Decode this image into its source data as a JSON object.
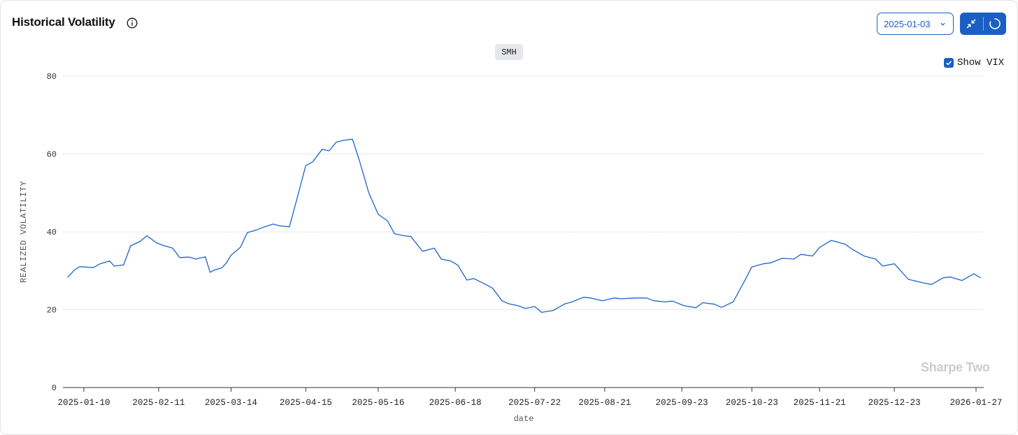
{
  "header": {
    "title": "Historical Volatility",
    "date_select": {
      "value": "2025-01-03"
    },
    "show_vix": {
      "label": "Show VIX",
      "checked": true
    }
  },
  "ticker_badge": "SMH",
  "watermark": "Sharpe Two",
  "icons": {
    "info": "info-icon",
    "date_dropdown": "chevron-down-icon",
    "collapse": "collapse-icon",
    "refresh": "loading-spinner-icon",
    "checkbox": "checkmark-icon"
  },
  "colors": {
    "accent": "#1a5fc4",
    "line": "#1f63c9",
    "grid": "#cfd1d5",
    "watermark": "#c9ccd1"
  },
  "chart_data": {
    "type": "line",
    "title": "",
    "xlabel": "date",
    "ylabel": "REALIZED VOLATILITY",
    "ylim": [
      0,
      80
    ],
    "yticks": [
      0,
      20,
      40,
      60,
      80
    ],
    "xticks": [
      "2025-01-10",
      "2025-02-11",
      "2025-03-14",
      "2025-04-15",
      "2025-05-16",
      "2025-06-18",
      "2025-07-22",
      "2025-08-21",
      "2025-09-23",
      "2025-10-23",
      "2025-11-21",
      "2025-12-23",
      "2026-01-27"
    ],
    "grid": true,
    "series": [
      {
        "x": [
          "2025-01-03",
          "2025-01-06",
          "2025-01-08",
          "2025-01-10",
          "2025-01-14",
          "2025-01-17",
          "2025-01-21",
          "2025-01-23",
          "2025-01-27",
          "2025-01-30",
          "2025-02-03",
          "2025-02-06",
          "2025-02-10",
          "2025-02-13",
          "2025-02-17",
          "2025-02-20",
          "2025-02-24",
          "2025-02-27",
          "2025-03-03",
          "2025-03-05",
          "2025-03-07",
          "2025-03-10",
          "2025-03-12",
          "2025-03-14",
          "2025-03-18",
          "2025-03-21",
          "2025-03-25",
          "2025-03-28",
          "2025-04-01",
          "2025-04-04",
          "2025-04-08",
          "2025-04-11",
          "2025-04-15",
          "2025-04-18",
          "2025-04-22",
          "2025-04-25",
          "2025-04-28",
          "2025-05-01",
          "2025-05-05",
          "2025-05-08",
          "2025-05-12",
          "2025-05-16",
          "2025-05-20",
          "2025-05-23",
          "2025-05-27",
          "2025-05-30",
          "2025-06-04",
          "2025-06-09",
          "2025-06-12",
          "2025-06-16",
          "2025-06-19",
          "2025-06-23",
          "2025-06-26",
          "2025-07-01",
          "2025-07-04",
          "2025-07-08",
          "2025-07-11",
          "2025-07-15",
          "2025-07-18",
          "2025-07-22",
          "2025-07-25",
          "2025-07-30",
          "2025-08-04",
          "2025-08-07",
          "2025-08-12",
          "2025-08-15",
          "2025-08-20",
          "2025-08-25",
          "2025-08-28",
          "2025-09-03",
          "2025-09-08",
          "2025-09-11",
          "2025-09-16",
          "2025-09-19",
          "2025-09-24",
          "2025-09-29",
          "2025-10-02",
          "2025-10-07",
          "2025-10-10",
          "2025-10-15",
          "2025-10-20",
          "2025-10-23",
          "2025-10-28",
          "2025-10-31",
          "2025-11-05",
          "2025-11-10",
          "2025-11-13",
          "2025-11-18",
          "2025-11-21",
          "2025-11-26",
          "2025-12-02",
          "2025-12-05",
          "2025-12-10",
          "2025-12-15",
          "2025-12-18",
          "2025-12-23",
          "2025-12-29",
          "2026-01-05",
          "2026-01-08",
          "2026-01-13",
          "2026-01-16",
          "2026-01-21",
          "2026-01-26",
          "2026-01-29"
        ],
        "y": [
          28.3,
          30.2,
          31.0,
          31.0,
          30.8,
          31.8,
          32.5,
          31.2,
          31.5,
          36.4,
          37.5,
          39.0,
          37.2,
          36.5,
          35.8,
          33.4,
          33.5,
          33.0,
          33.6,
          29.6,
          30.2,
          30.7,
          32.0,
          34.0,
          36.0,
          39.8,
          40.5,
          41.2,
          42.0,
          41.5,
          41.3,
          48.0,
          57.0,
          58.0,
          61.2,
          60.8,
          63.0,
          63.5,
          63.8,
          58.2,
          50.0,
          44.5,
          42.8,
          39.5,
          39.0,
          38.8,
          35.0,
          35.8,
          33.0,
          32.5,
          31.5,
          27.6,
          28.0,
          26.5,
          25.5,
          22.3,
          21.5,
          21.0,
          20.3,
          20.8,
          19.3,
          19.8,
          21.5,
          22.0,
          23.2,
          23.0,
          22.3,
          23.0,
          22.8,
          23.0,
          23.0,
          22.3,
          22.0,
          22.2,
          21.0,
          20.5,
          21.8,
          21.4,
          20.6,
          22.0,
          27.5,
          31.0,
          31.8,
          32.0,
          33.2,
          33.0,
          34.2,
          33.8,
          36.0,
          37.8,
          36.8,
          35.5,
          33.8,
          33.0,
          31.2,
          31.8,
          27.8,
          26.8,
          26.5,
          28.2,
          28.4,
          27.5,
          29.2,
          28.2
        ]
      }
    ]
  }
}
